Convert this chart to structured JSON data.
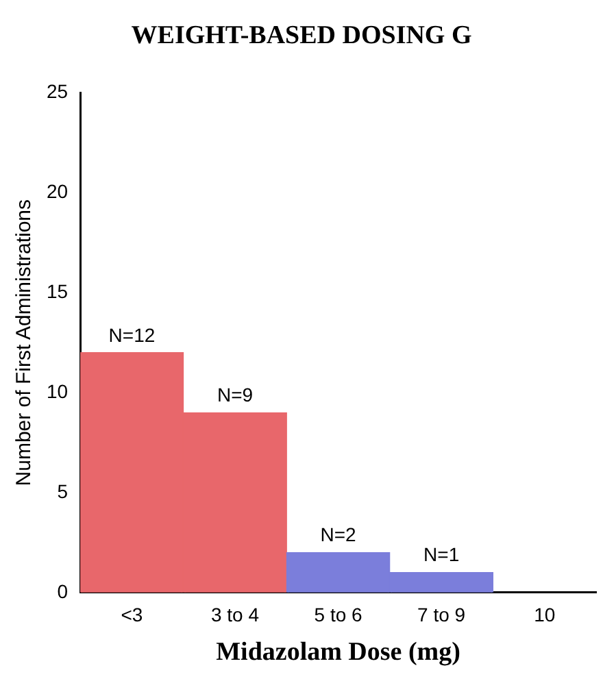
{
  "chart_data": {
    "type": "bar",
    "title": "WEIGHT-BASED DOSING G",
    "xlabel": "Midazolam Dose (mg)",
    "ylabel": "Number of First Administrations",
    "categories": [
      "<3",
      "3 to 4",
      "5 to 6",
      "7 to 9",
      "10"
    ],
    "values": [
      12,
      9,
      2,
      1,
      null
    ],
    "colors": [
      "#e8676b",
      "#e8676b",
      "#7b7edb",
      "#7b7edb",
      "#7b7edb"
    ],
    "value_labels": [
      "N=12",
      "N=9",
      "N=2",
      "N=1",
      null
    ],
    "ylim": [
      0,
      25
    ],
    "yticks": [
      0,
      5,
      10,
      15,
      20,
      25
    ],
    "grid": false,
    "legend": false
  }
}
